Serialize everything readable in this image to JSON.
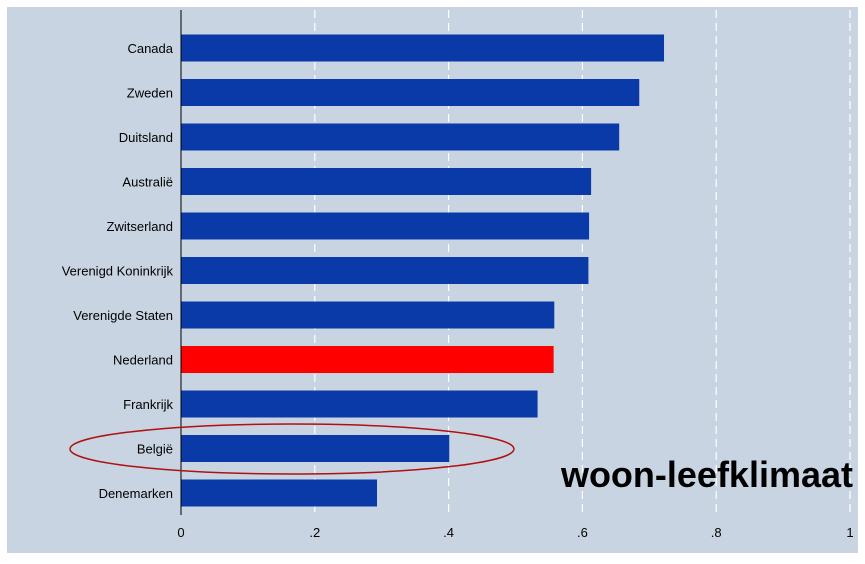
{
  "colors": {
    "background": "#ffffff",
    "plot_background": "#c8d4e1",
    "bar": "#0a3aa8",
    "highlight_bar": "#ff0000",
    "ellipse": "#b01010",
    "gridline": "#ffffff",
    "axis_line": "#000000",
    "text": "#000000"
  },
  "chart_data": {
    "type": "bar",
    "orientation": "horizontal",
    "annotation": "woon-leefklimaat",
    "categories": [
      "Canada",
      "Zweden",
      "Duitsland",
      "Australië",
      "Zwitserland",
      "Verenigd Koninkrijk",
      "Verenigde Staten",
      "Nederland",
      "Frankrijk",
      "België",
      "Denemarken"
    ],
    "values": [
      0.722,
      0.685,
      0.655,
      0.613,
      0.61,
      0.609,
      0.558,
      0.557,
      0.533,
      0.401,
      0.293
    ],
    "highlight_category": "Nederland",
    "circled_category": "België",
    "xlim": [
      0,
      1
    ],
    "xticks": [
      0,
      0.2,
      0.4,
      0.6,
      0.8,
      1
    ],
    "xtick_labels": [
      "0",
      ".2",
      ".4",
      ".6",
      ".8",
      "1"
    ],
    "grid": "vertical dashed",
    "xlabel": "",
    "ylabel": ""
  }
}
